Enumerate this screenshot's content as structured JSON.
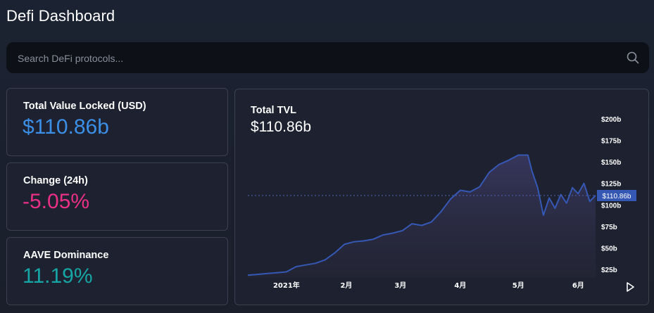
{
  "page": {
    "title": "Defi Dashboard"
  },
  "search": {
    "placeholder": "Search DeFi protocols...",
    "icon": "search-icon"
  },
  "cards": {
    "tvl": {
      "label": "Total Value Locked (USD)",
      "value": "$110.86b",
      "color": "#3b8fe6"
    },
    "change": {
      "label": "Change (24h)",
      "value": "-5.05%",
      "color": "#ea2f86"
    },
    "dominance": {
      "label": "AAVE Dominance",
      "value": "11.19%",
      "color": "#16a6a6"
    }
  },
  "chart": {
    "title": "Total TVL",
    "value": "$110.86b",
    "play_icon": "play-icon"
  },
  "chart_data": {
    "type": "area",
    "title": "Total TVL",
    "ylim": [
      15,
      210
    ],
    "y_ticks": [
      "$25b",
      "$50b",
      "$75b",
      "$100b",
      "$125b",
      "$150b",
      "$175b",
      "$200b"
    ],
    "y_tick_values": [
      25,
      50,
      75,
      100,
      125,
      150,
      175,
      200
    ],
    "x_ticks": [
      "2021年",
      "2月",
      "3月",
      "4月",
      "5月",
      "6月"
    ],
    "x_tick_values": [
      0,
      31,
      59,
      90,
      120,
      151
    ],
    "current_label": "$110.86b",
    "current_value": 110.86,
    "series": [
      {
        "x": [
          -20,
          -15,
          -10,
          -5,
          0,
          5,
          10,
          15,
          20,
          25,
          30,
          35,
          40,
          45,
          50,
          55,
          60,
          65,
          70,
          75,
          80,
          85,
          90,
          95,
          100,
          105,
          110,
          115,
          120,
          125,
          127,
          130,
          133,
          136,
          139,
          142,
          145,
          148,
          151,
          154,
          157,
          160
        ],
        "y": [
          18,
          19,
          20,
          21,
          22,
          28,
          30,
          32,
          36,
          44,
          54,
          57,
          58,
          60,
          65,
          67,
          70,
          78,
          76,
          80,
          92,
          107,
          117,
          115,
          121,
          138,
          147,
          152,
          158,
          158,
          140,
          120,
          88,
          108,
          96,
          112,
          102,
          120,
          113,
          125,
          104,
          111
        ]
      }
    ],
    "grid": false,
    "line_color": "#3658b5"
  }
}
